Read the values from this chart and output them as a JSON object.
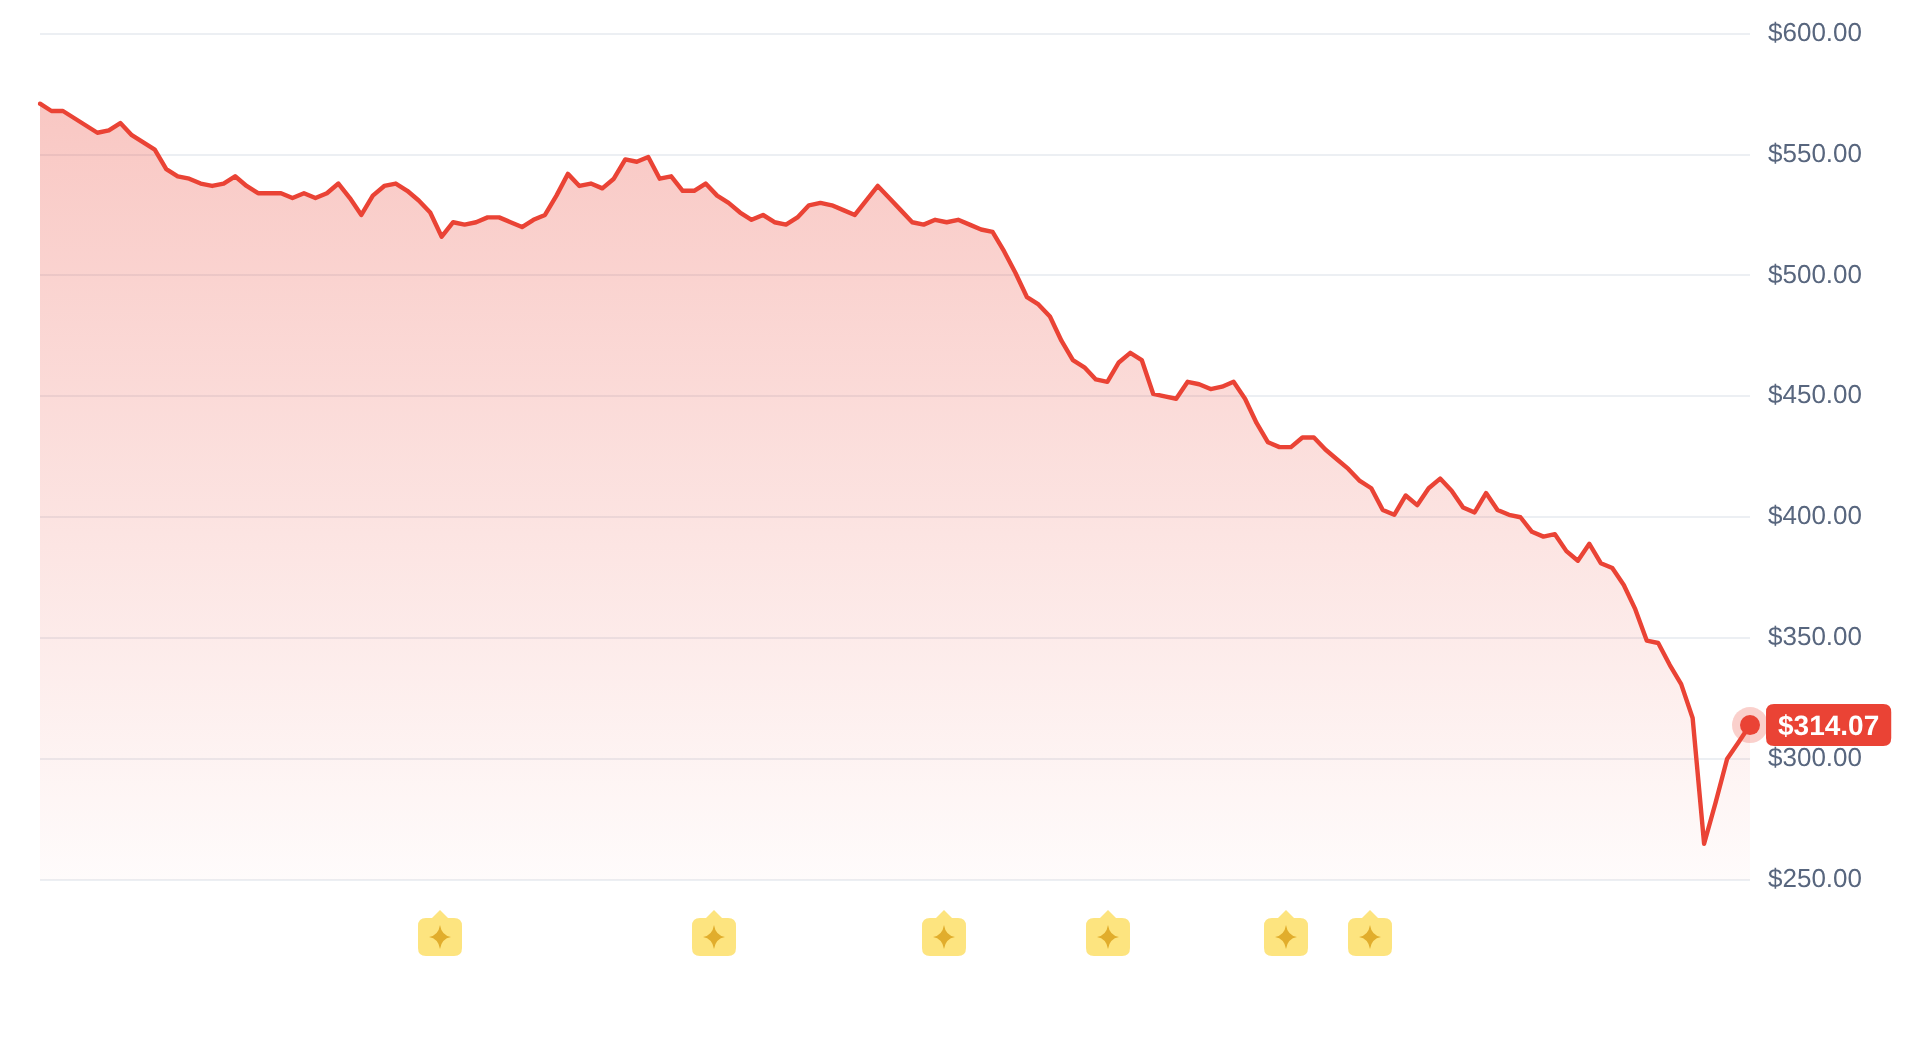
{
  "chart_data": {
    "type": "area",
    "categories": [
      null,
      null,
      null,
      null,
      null,
      null,
      null,
      null,
      null,
      null,
      null,
      null,
      null,
      null,
      null,
      null,
      null,
      null,
      null,
      null,
      null,
      null,
      null,
      null,
      null,
      null,
      null,
      null,
      null,
      null,
      null,
      null,
      null,
      null,
      null,
      null,
      null,
      null,
      null,
      null,
      null,
      null,
      null,
      null,
      null,
      null,
      null,
      null,
      null,
      null,
      null,
      null,
      null,
      null,
      null,
      null,
      null,
      null,
      null,
      null,
      null,
      null,
      null,
      null,
      null,
      null,
      null,
      null,
      null,
      null,
      null,
      null,
      null,
      null,
      null,
      null,
      null,
      null,
      null,
      null,
      null,
      null,
      null,
      null,
      null,
      null,
      null,
      null,
      null,
      null,
      null,
      null,
      null,
      null,
      null,
      null,
      null,
      null,
      null,
      null,
      null,
      null,
      null,
      null,
      null,
      null,
      null,
      null,
      null,
      null,
      null,
      null,
      null,
      null,
      null,
      null,
      null,
      null,
      null,
      null,
      null,
      null,
      null,
      null,
      null,
      null,
      null,
      null,
      null,
      null,
      null,
      null,
      null,
      null,
      null,
      null,
      null,
      null,
      null,
      null,
      null,
      null,
      null,
      null,
      null,
      null,
      null,
      null,
      null,
      null
    ],
    "series": [
      {
        "color": "#ea4335",
        "values": [
          571,
          568,
          568,
          565,
          562,
          559,
          560,
          563,
          558,
          555,
          552,
          544,
          541,
          540,
          538,
          537,
          538,
          541,
          537,
          534,
          534,
          534,
          532,
          534,
          532,
          534,
          538,
          532,
          525,
          533,
          537,
          538,
          535,
          531,
          526,
          516,
          522,
          521,
          522,
          524,
          524,
          522,
          520,
          523,
          525,
          533,
          542,
          537,
          538,
          536,
          540,
          548,
          547,
          549,
          540,
          541,
          535,
          535,
          538,
          533,
          530,
          526,
          523,
          525,
          522,
          521,
          524,
          529,
          530,
          529,
          527,
          525,
          531,
          537,
          532,
          527,
          522,
          521,
          523,
          522,
          523,
          521,
          519,
          518,
          510,
          501,
          491,
          488,
          483,
          473,
          465,
          462,
          457,
          456,
          464,
          468,
          465,
          451,
          450,
          449,
          456,
          455,
          453,
          454,
          456,
          449,
          439,
          431,
          429,
          429,
          433,
          433,
          428,
          424,
          420,
          415,
          412,
          403,
          401,
          409,
          405,
          412,
          416,
          411,
          404,
          402,
          410,
          403,
          401,
          400,
          394,
          392,
          393,
          386,
          382,
          389,
          381,
          379,
          372,
          362,
          349,
          348,
          339,
          331,
          317,
          265,
          282,
          300,
          307,
          314.07
        ],
        "value_labels": [
          null,
          null,
          null,
          null,
          null,
          null,
          null,
          null,
          null,
          null,
          null,
          null,
          null,
          null,
          null,
          null,
          null,
          null,
          null,
          null,
          null,
          null,
          null,
          null,
          null,
          null,
          null,
          null,
          null,
          null,
          null,
          null,
          null,
          null,
          null,
          null,
          null,
          null,
          null,
          null,
          null,
          null,
          null,
          null,
          null,
          null,
          null,
          null,
          null,
          null,
          null,
          null,
          null,
          null,
          null,
          null,
          null,
          null,
          null,
          null,
          null,
          null,
          null,
          null,
          null,
          null,
          null,
          null,
          null,
          null,
          null,
          null,
          null,
          null,
          null,
          null,
          null,
          null,
          null,
          null,
          null,
          null,
          null,
          null,
          null,
          null,
          null,
          null,
          null,
          null,
          null,
          null,
          null,
          null,
          null,
          null,
          null,
          null,
          null,
          null,
          null,
          null,
          null,
          null,
          null,
          null,
          null,
          null,
          null,
          null,
          null,
          null,
          null,
          null,
          null,
          null,
          null,
          null,
          null,
          null,
          null,
          null,
          null,
          null,
          null,
          null,
          null,
          null,
          null,
          null,
          null,
          null,
          null,
          null,
          null,
          null,
          null,
          null,
          null,
          null,
          null,
          null,
          null,
          null,
          null,
          null,
          null,
          null,
          null,
          "$314.07"
        ]
      }
    ],
    "ylim": [
      250,
      600
    ],
    "yticks": [
      {
        "value": 250,
        "label": "$250.00"
      },
      {
        "value": 300,
        "label": "$300.00"
      },
      {
        "value": 350,
        "label": "$350.00"
      },
      {
        "value": 400,
        "label": "$400.00"
      },
      {
        "value": 450,
        "label": "$450.00"
      },
      {
        "value": 500,
        "label": "$500.00"
      },
      {
        "value": 550,
        "label": "$550.00"
      },
      {
        "value": 600,
        "label": "$600.00"
      }
    ],
    "grid": "y",
    "tick_labels": "y",
    "line_style": "solid"
  }
}
